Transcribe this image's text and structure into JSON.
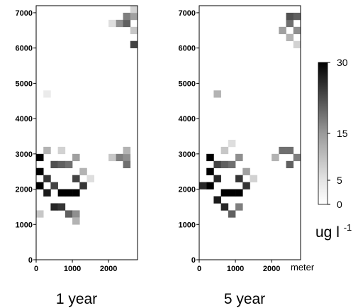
{
  "chart_data": [
    {
      "type": "heatmap",
      "caption": "1 year",
      "xticks": [
        "0",
        "1000",
        "2000"
      ],
      "yticks": [
        "0",
        "1000",
        "2000",
        "3000",
        "4000",
        "5000",
        "6000",
        "7000"
      ],
      "xlim": [
        0,
        2800
      ],
      "ylim": [
        0,
        7200
      ],
      "cell_size": 200,
      "cells": [
        {
          "x": 0,
          "y": 2000,
          "v": 30
        },
        {
          "x": 0,
          "y": 2400,
          "v": 30
        },
        {
          "x": 0,
          "y": 2800,
          "v": 30
        },
        {
          "x": 200,
          "y": 1800,
          "v": 26
        },
        {
          "x": 200,
          "y": 2200,
          "v": 22
        },
        {
          "x": 400,
          "y": 1400,
          "v": 24
        },
        {
          "x": 400,
          "y": 2000,
          "v": 20
        },
        {
          "x": 600,
          "y": 1400,
          "v": 22
        },
        {
          "x": 600,
          "y": 1800,
          "v": 30
        },
        {
          "x": 800,
          "y": 1800,
          "v": 30
        },
        {
          "x": 1000,
          "y": 1800,
          "v": 30
        },
        {
          "x": 1000,
          "y": 2200,
          "v": 20
        },
        {
          "x": 1200,
          "y": 2000,
          "v": 22
        },
        {
          "x": 800,
          "y": 1200,
          "v": 16
        },
        {
          "x": 1000,
          "y": 1200,
          "v": 10
        },
        {
          "x": 400,
          "y": 2600,
          "v": 18
        },
        {
          "x": 600,
          "y": 2600,
          "v": 16
        },
        {
          "x": 800,
          "y": 2600,
          "v": 14
        },
        {
          "x": 1000,
          "y": 2800,
          "v": 8
        },
        {
          "x": 1200,
          "y": 2400,
          "v": 6
        },
        {
          "x": 1400,
          "y": 2200,
          "v": 2
        },
        {
          "x": 200,
          "y": 3000,
          "v": 6
        },
        {
          "x": 600,
          "y": 3000,
          "v": 3
        },
        {
          "x": 1000,
          "y": 1000,
          "v": 6
        },
        {
          "x": 0,
          "y": 1200,
          "v": 4
        },
        {
          "x": 200,
          "y": 4600,
          "v": 1
        },
        {
          "x": 2200,
          "y": 2800,
          "v": 12
        },
        {
          "x": 2400,
          "y": 2800,
          "v": 10
        },
        {
          "x": 2400,
          "y": 2600,
          "v": 14
        },
        {
          "x": 2400,
          "y": 3000,
          "v": 6
        },
        {
          "x": 2000,
          "y": 2800,
          "v": 4
        },
        {
          "x": 2200,
          "y": 6600,
          "v": 10
        },
        {
          "x": 2400,
          "y": 6600,
          "v": 16
        },
        {
          "x": 2400,
          "y": 6800,
          "v": 12
        },
        {
          "x": 2600,
          "y": 6800,
          "v": 8
        },
        {
          "x": 2600,
          "y": 6400,
          "v": 4
        },
        {
          "x": 2600,
          "y": 6000,
          "v": 20
        },
        {
          "x": 2000,
          "y": 6600,
          "v": 2
        },
        {
          "x": 2600,
          "y": 7000,
          "v": 3
        }
      ]
    },
    {
      "type": "heatmap",
      "caption": "5 year",
      "xticks": [
        "0",
        "1000",
        "2000"
      ],
      "xunit": "meter",
      "yticks": [
        "0",
        "1000",
        "2000",
        "3000",
        "4000",
        "5000",
        "6000",
        "7000"
      ],
      "xlim": [
        0,
        2800
      ],
      "ylim": [
        0,
        7200
      ],
      "cell_size": 200,
      "cells": [
        {
          "x": 200,
          "y": 2000,
          "v": 30
        },
        {
          "x": 200,
          "y": 2400,
          "v": 30
        },
        {
          "x": 200,
          "y": 2800,
          "v": 30
        },
        {
          "x": 0,
          "y": 2000,
          "v": 24
        },
        {
          "x": 400,
          "y": 2200,
          "v": 24
        },
        {
          "x": 400,
          "y": 1600,
          "v": 26
        },
        {
          "x": 600,
          "y": 1400,
          "v": 24
        },
        {
          "x": 600,
          "y": 1800,
          "v": 30
        },
        {
          "x": 800,
          "y": 1800,
          "v": 30
        },
        {
          "x": 1000,
          "y": 1800,
          "v": 30
        },
        {
          "x": 1000,
          "y": 2200,
          "v": 22
        },
        {
          "x": 1200,
          "y": 2000,
          "v": 22
        },
        {
          "x": 800,
          "y": 1200,
          "v": 16
        },
        {
          "x": 1000,
          "y": 1400,
          "v": 12
        },
        {
          "x": 400,
          "y": 2600,
          "v": 20
        },
        {
          "x": 600,
          "y": 2600,
          "v": 16
        },
        {
          "x": 800,
          "y": 2600,
          "v": 14
        },
        {
          "x": 1000,
          "y": 2800,
          "v": 10
        },
        {
          "x": 1200,
          "y": 2400,
          "v": 8
        },
        {
          "x": 1400,
          "y": 2200,
          "v": 3
        },
        {
          "x": 600,
          "y": 3000,
          "v": 4
        },
        {
          "x": 800,
          "y": 3200,
          "v": 2
        },
        {
          "x": 400,
          "y": 4600,
          "v": 6
        },
        {
          "x": 2200,
          "y": 3000,
          "v": 14
        },
        {
          "x": 2400,
          "y": 3000,
          "v": 14
        },
        {
          "x": 2600,
          "y": 2800,
          "v": 12
        },
        {
          "x": 2400,
          "y": 2600,
          "v": 16
        },
        {
          "x": 2000,
          "y": 2800,
          "v": 6
        },
        {
          "x": 2400,
          "y": 6600,
          "v": 14
        },
        {
          "x": 2400,
          "y": 6800,
          "v": 18
        },
        {
          "x": 2600,
          "y": 6800,
          "v": 16
        },
        {
          "x": 2600,
          "y": 6400,
          "v": 10
        },
        {
          "x": 2200,
          "y": 6400,
          "v": 8
        },
        {
          "x": 2400,
          "y": 6200,
          "v": 6
        },
        {
          "x": 2600,
          "y": 6000,
          "v": 3
        }
      ]
    },
    {
      "type": "colorbar",
      "unit": "ug l",
      "unit_exponent": "-1",
      "ticks": [
        "0",
        "5",
        "15",
        "30"
      ],
      "range": [
        0,
        30
      ]
    }
  ]
}
